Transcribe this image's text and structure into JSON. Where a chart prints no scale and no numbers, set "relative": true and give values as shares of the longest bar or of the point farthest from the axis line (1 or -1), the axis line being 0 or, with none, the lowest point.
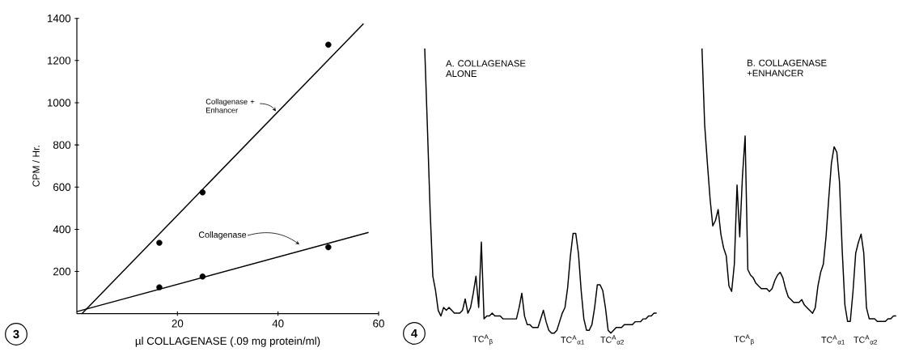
{
  "chart_data": [
    {
      "type": "scatter",
      "xlabel": "µl COLLAGENASE (.09 mg protein/ml)",
      "ylabel": "CPM / Hr.",
      "xlim": [
        0,
        60
      ],
      "ylim": [
        0,
        1400
      ],
      "xticks": [
        20,
        40,
        60
      ],
      "yticks": [
        200,
        400,
        600,
        800,
        1000,
        1200,
        1400
      ],
      "series": [
        {
          "type": "line",
          "color": "#000000",
          "x": [
            1,
            57
          ],
          "values": [
            0,
            1375
          ]
        },
        {
          "type": "line",
          "color": "#000000",
          "x": [
            0,
            58
          ],
          "values": [
            10,
            385
          ]
        },
        {
          "type": "scatter",
          "color": "#000000",
          "x": [
            16.4,
            25,
            50
          ],
          "values": [
            336,
            575,
            1275
          ]
        },
        {
          "type": "scatter",
          "color": "#000000",
          "x": [
            16.4,
            25,
            50
          ],
          "values": [
            125,
            176,
            315
          ]
        }
      ],
      "annotations": [
        "3",
        {
          "text": "Collagenase + Enhancer",
          "x": 39.6,
          "y": 960
        },
        "Collagenase"
      ]
    },
    {
      "type": "line",
      "relative": true,
      "title": "A. COLLAGENASE ALONE",
      "categories": [
        null,
        null,
        null,
        null,
        null,
        null,
        null,
        null,
        null,
        null,
        null,
        null,
        null,
        null,
        null,
        null,
        null,
        null,
        null,
        null,
        null,
        null,
        null,
        null,
        null,
        null,
        null,
        null,
        null,
        null,
        null,
        null,
        null,
        null,
        null,
        null,
        null,
        null,
        null,
        null,
        null,
        null,
        null,
        null,
        null,
        null,
        null,
        null,
        null,
        null,
        null,
        null,
        null,
        null,
        null,
        null,
        null,
        null,
        null,
        null,
        null,
        null,
        null,
        null,
        null,
        null,
        null,
        null,
        null,
        null,
        null,
        null,
        null,
        null,
        null,
        null,
        null,
        null,
        null,
        null,
        null,
        null,
        null,
        null,
        null,
        null,
        null
      ],
      "series": [
        {
          "color": "#000000",
          "values": [
            1.0,
            0.72,
            0.43,
            0.2,
            0.15,
            0.08,
            0.06,
            0.09,
            0.08,
            0.09,
            0.08,
            0.07,
            0.07,
            0.07,
            0.08,
            0.12,
            0.07,
            0.09,
            0.14,
            0.2,
            0.09,
            0.32,
            0.05,
            0.06,
            0.06,
            0.07,
            0.06,
            0.06,
            0.06,
            0.05,
            0.05,
            0.05,
            0.05,
            0.05,
            0.05,
            0.09,
            0.14,
            0.06,
            0.03,
            0.03,
            0.02,
            0.02,
            0.02,
            0.05,
            0.08,
            0.04,
            0.01,
            0.0,
            0,
            0.01,
            0.04,
            0.07,
            0.09,
            0.16,
            0.27,
            0.35,
            0.35,
            0.28,
            0.15,
            0.05,
            0.01,
            0.01,
            0.03,
            0.09,
            0.17,
            0.17,
            0.15,
            0.09,
            0.01,
            0.0,
            0.01,
            0.02,
            0.02,
            0.02,
            0.03,
            0.03,
            0.03,
            0.03,
            0.04,
            0.04,
            0.04,
            0.05,
            0.05,
            0.06,
            0.06,
            0.07,
            0.07
          ]
        }
      ],
      "annotations": [
        "4",
        "TC$^{A}$$_{β}$",
        "TC$^{A}$$_{α1}$",
        "TC$^{A}$$_{α2}$"
      ]
    },
    {
      "type": "line",
      "relative": true,
      "title": "B. COLLAGENASE +ENHANCER",
      "categories": [
        null,
        null,
        null,
        null,
        null,
        null,
        null,
        null,
        null,
        null,
        null,
        null,
        null,
        null,
        null,
        null,
        null,
        null,
        null,
        null,
        null,
        null,
        null,
        null,
        null,
        null,
        null,
        null,
        null,
        null,
        null,
        null,
        null,
        null,
        null,
        null,
        null,
        null,
        null,
        null,
        null,
        null,
        null,
        null,
        null,
        null,
        null,
        null,
        null,
        null,
        null,
        null,
        null,
        null,
        null,
        null,
        null,
        null,
        null,
        null,
        null,
        null,
        null,
        null,
        null,
        null,
        null,
        null,
        null,
        null,
        null,
        null,
        null
      ],
      "series": [
        {
          "color": "#000000",
          "values": [
            1.0,
            0.72,
            0.58,
            0.45,
            0.35,
            0.37,
            0.41,
            0.32,
            0.27,
            0.24,
            0.13,
            0.11,
            0.21,
            0.5,
            0.31,
            0.53,
            0.68,
            0.19,
            0.17,
            0.16,
            0.14,
            0.13,
            0.12,
            0.12,
            0.12,
            0.11,
            0.12,
            0.15,
            0.17,
            0.18,
            0.16,
            0.12,
            0.09,
            0.08,
            0.07,
            0.07,
            0.07,
            0.08,
            0.06,
            0.05,
            0.04,
            0.03,
            0.05,
            0.13,
            0.18,
            0.21,
            0.31,
            0.45,
            0.58,
            0.64,
            0.62,
            0.51,
            0.26,
            0.06,
            0,
            0,
            0.11,
            0.25,
            0.29,
            0.32,
            0.25,
            0.05,
            0.01,
            0.01,
            0.01,
            0.0,
            0,
            0.0,
            0.0,
            0.01,
            0.01,
            0.02,
            0.02
          ]
        }
      ],
      "annotations": [
        "TC$^{A}$$_{β}$",
        "TC$^{A}$$_{α1}$",
        "TC$^{A}$$_{α2}$"
      ]
    }
  ]
}
